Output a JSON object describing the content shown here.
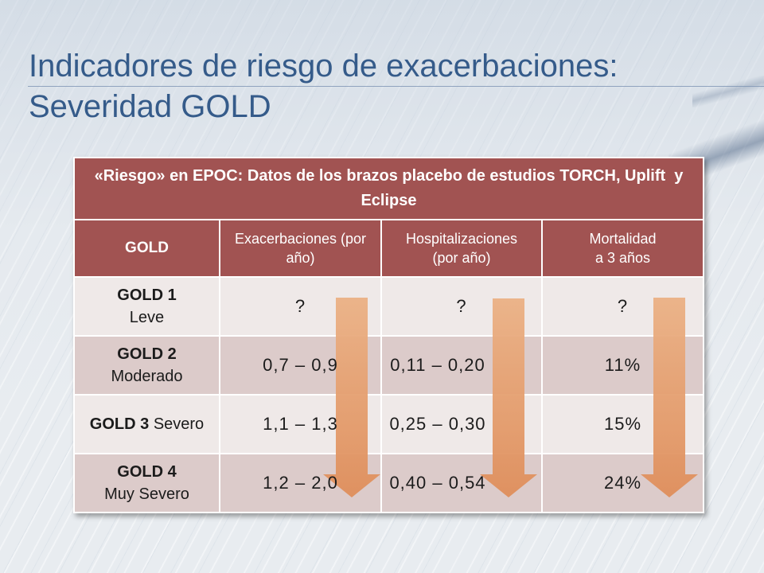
{
  "slide": {
    "title_line1": "Indicadores de riesgo de exacerbaciones:",
    "title_line2": "Severidad GOLD",
    "arrow_icon": "down-arrow-icon"
  },
  "table": {
    "caption": "«Riesgo» en EPOC: Datos de los brazos placebo de estudios TORCH, Uplift  y Eclipse",
    "headers": {
      "gold": "GOLD",
      "exacerbaciones": "Exacerbaciones (por año)",
      "hospitalizaciones": "Hospitalizaciones (por año)",
      "mortalidad": "Mortalidad a 3 años"
    },
    "rows": [
      {
        "gold": "GOLD 1",
        "severity": "Leve",
        "exacerbaciones": "?",
        "hospitalizaciones": "?",
        "mortalidad": "?"
      },
      {
        "gold": "GOLD 2",
        "severity": "Moderado",
        "exacerbaciones": "0,7 – 0,9",
        "hospitalizaciones": "0,11 – 0,20",
        "mortalidad": "11%"
      },
      {
        "gold": "GOLD 3",
        "severity": "Severo",
        "exacerbaciones": "1,1 – 1,3",
        "hospitalizaciones": "0,25 – 0,30",
        "mortalidad": "15%"
      },
      {
        "gold": "GOLD 4",
        "severity": "Muy Severo",
        "exacerbaciones": "1,2 – 2,0",
        "hospitalizaciones": "0,40 – 0,54",
        "mortalidad": "24%"
      }
    ]
  },
  "colors": {
    "title": "#355b8a",
    "header_bg": "#a15352",
    "row_light": "#efe9e8",
    "row_dark": "#dccbca",
    "arrow": "#df8e5b"
  }
}
